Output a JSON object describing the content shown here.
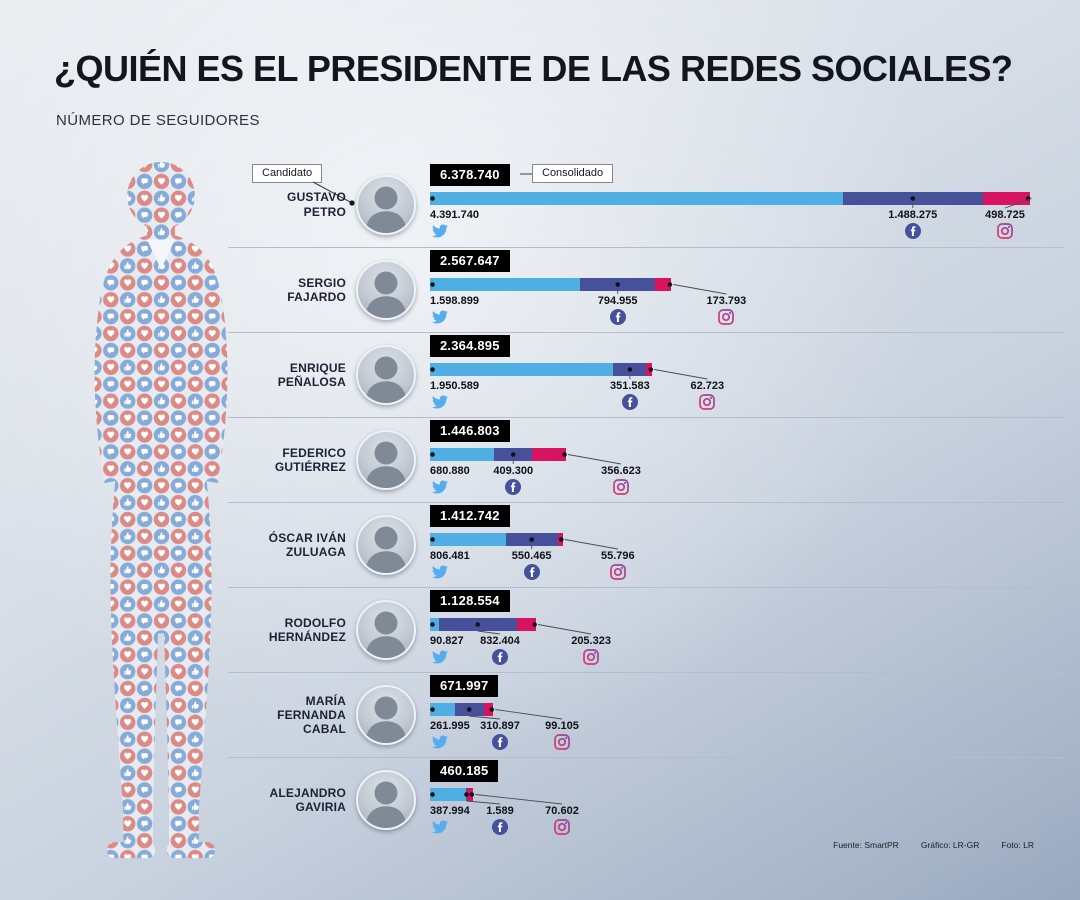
{
  "title": "¿QUIÉN ES EL PRESIDENTE DE LAS REDES SOCIALES?",
  "subtitle": "NÚMERO DE SEGUIDORES",
  "callouts": {
    "candidate": "Candidato",
    "consolidated": "Consolidado"
  },
  "credits": {
    "source": "Fuente: SmartPR",
    "graphic": "Gráfico: LR-GR",
    "photo": "Foto: LR"
  },
  "colors": {
    "twitter": "#4fafe4",
    "facebook": "#47509b",
    "instagram": "#d8135f",
    "total_box": "#000000"
  },
  "chart_data": {
    "type": "bar",
    "orientation": "horizontal",
    "stacked": true,
    "title": "¿Quién es el presidente de las redes sociales?",
    "subtitle": "Número de seguidores",
    "unit": "seguidores",
    "series_labels": [
      "Twitter",
      "Facebook",
      "Instagram"
    ],
    "candidates": [
      {
        "name": "GUSTAVO PETRO",
        "total": "6.378.740",
        "total_value": 6378740,
        "twitter": "4.391.740",
        "twitter_value": 4391740,
        "facebook": "1.488.275",
        "facebook_value": 1488275,
        "instagram": "498.725",
        "instagram_value": 498725
      },
      {
        "name": "SERGIO FAJARDO",
        "total": "2.567.647",
        "total_value": 2567647,
        "twitter": "1.598.899",
        "twitter_value": 1598899,
        "facebook": "794.955",
        "facebook_value": 794955,
        "instagram": "173.793",
        "instagram_value": 173793
      },
      {
        "name": "ENRIQUE PEÑALOSA",
        "total": "2.364.895",
        "total_value": 2364895,
        "twitter": "1.950.589",
        "twitter_value": 1950589,
        "facebook": "351.583",
        "facebook_value": 351583,
        "instagram": "62.723",
        "instagram_value": 62723
      },
      {
        "name": "FEDERICO GUTIÉRREZ",
        "total": "1.446.803",
        "total_value": 1446803,
        "twitter": "680.880",
        "twitter_value": 680880,
        "facebook": "409.300",
        "facebook_value": 409300,
        "instagram": "356.623",
        "instagram_value": 356623
      },
      {
        "name": "ÓSCAR IVÁN ZULUAGA",
        "total": "1.412.742",
        "total_value": 1412742,
        "twitter": "806.481",
        "twitter_value": 806481,
        "facebook": "550.465",
        "facebook_value": 550465,
        "instagram": "55.796",
        "instagram_value": 55796
      },
      {
        "name": "RODOLFO HERNÁNDEZ",
        "total": "1.128.554",
        "total_value": 1128554,
        "twitter": "90.827",
        "twitter_value": 90827,
        "facebook": "832.404",
        "facebook_value": 832404,
        "instagram": "205.323",
        "instagram_value": 205323
      },
      {
        "name": "MARÍA FERNANDA CABAL",
        "total": "671.997",
        "total_value": 671997,
        "twitter": "261.995",
        "twitter_value": 261995,
        "facebook": "310.897",
        "facebook_value": 310897,
        "instagram": "99.105",
        "instagram_value": 99105
      },
      {
        "name": "ALEJANDRO GAVIRIA",
        "total": "460.185",
        "total_value": 460185,
        "twitter": "387.994",
        "twitter_value": 387994,
        "facebook": "1.589",
        "facebook_value": 1589,
        "instagram": "70.602",
        "instagram_value": 70602
      }
    ]
  }
}
